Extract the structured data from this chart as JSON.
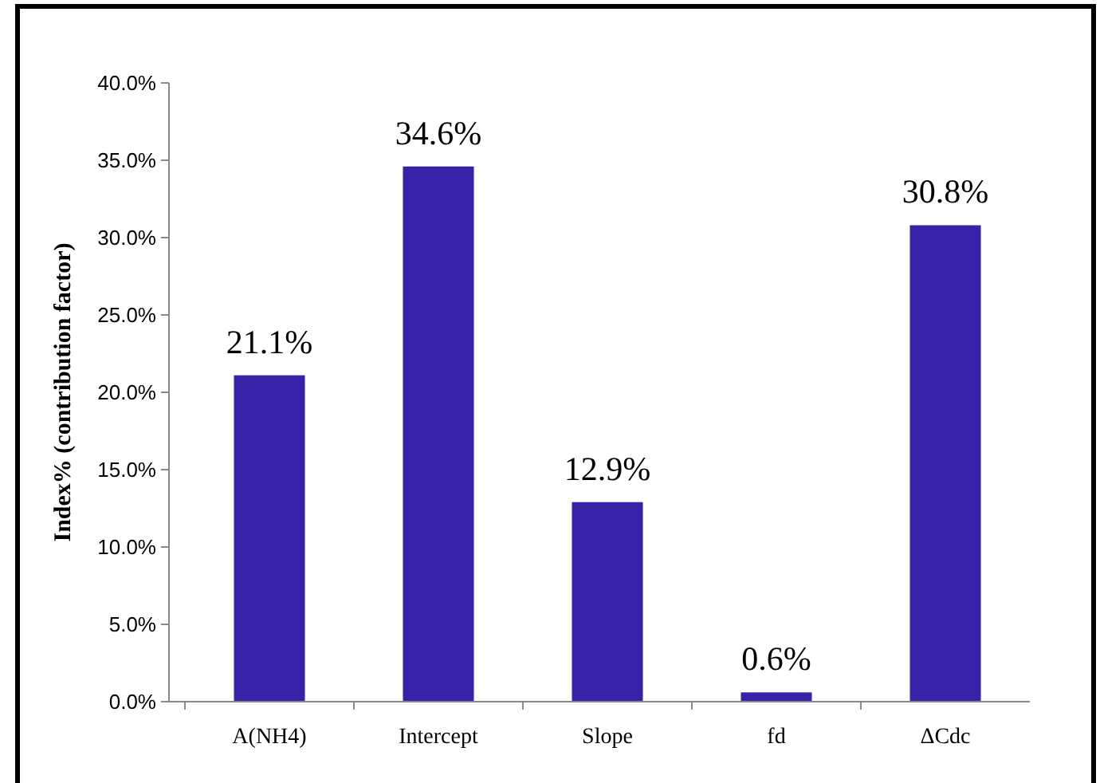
{
  "chart_data": {
    "type": "bar",
    "ylabel": "Index% (contribution factor)",
    "categories": [
      "A(NH4)",
      "Intercept",
      "Slope",
      "fd",
      "ΔCdc"
    ],
    "values": [
      21.1,
      34.6,
      12.9,
      0.6,
      30.8
    ],
    "value_labels": [
      "21.1%",
      "34.6%",
      "12.9%",
      "0.6%",
      "30.8%"
    ],
    "color": "#3a22a8",
    "ylim": [
      0,
      40
    ],
    "yticks": [
      {
        "value": 0,
        "label": "0.0%"
      },
      {
        "value": 5,
        "label": "5.0%"
      },
      {
        "value": 10,
        "label": "10.0%"
      },
      {
        "value": 15,
        "label": "15.0%"
      },
      {
        "value": 20,
        "label": "20.0%"
      },
      {
        "value": 25,
        "label": "25.0%"
      },
      {
        "value": 30,
        "label": "30.0%"
      },
      {
        "value": 35,
        "label": "35.0%"
      },
      {
        "value": 40,
        "label": "40.0%"
      }
    ],
    "grid": false
  }
}
